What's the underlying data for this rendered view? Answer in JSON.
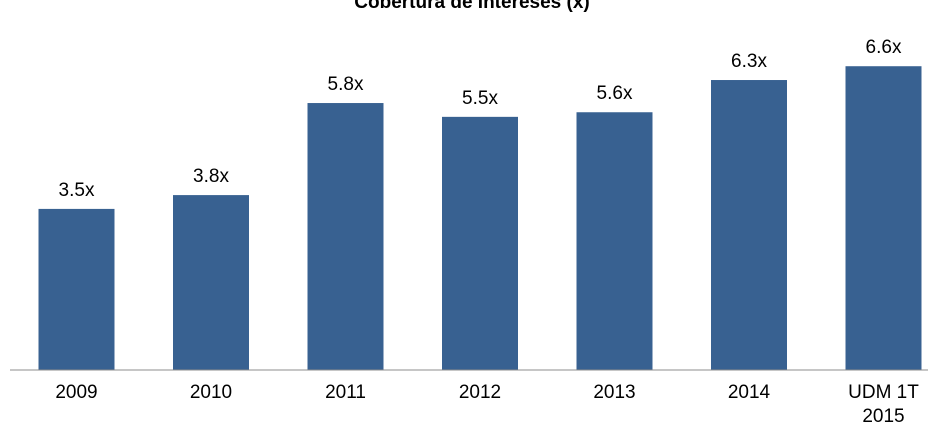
{
  "chart_data": {
    "type": "bar",
    "title": "Cobertura de Intereses (x)",
    "categories": [
      [
        "2009"
      ],
      [
        "2010"
      ],
      [
        "2011"
      ],
      [
        "2012"
      ],
      [
        "2013"
      ],
      [
        "2014"
      ],
      [
        "UDM 1T",
        "2015"
      ]
    ],
    "values": [
      3.5,
      3.8,
      5.8,
      5.5,
      5.6,
      6.3,
      6.6
    ],
    "data_labels": [
      "3.5x",
      "3.8x",
      "5.8x",
      "5.5x",
      "5.6x",
      "6.3x",
      "6.6x"
    ],
    "ylim": [
      0,
      7.3
    ],
    "grid": false,
    "legend": "none",
    "colors": {
      "bar": "#386191",
      "axis": "#8c8c8c"
    }
  }
}
